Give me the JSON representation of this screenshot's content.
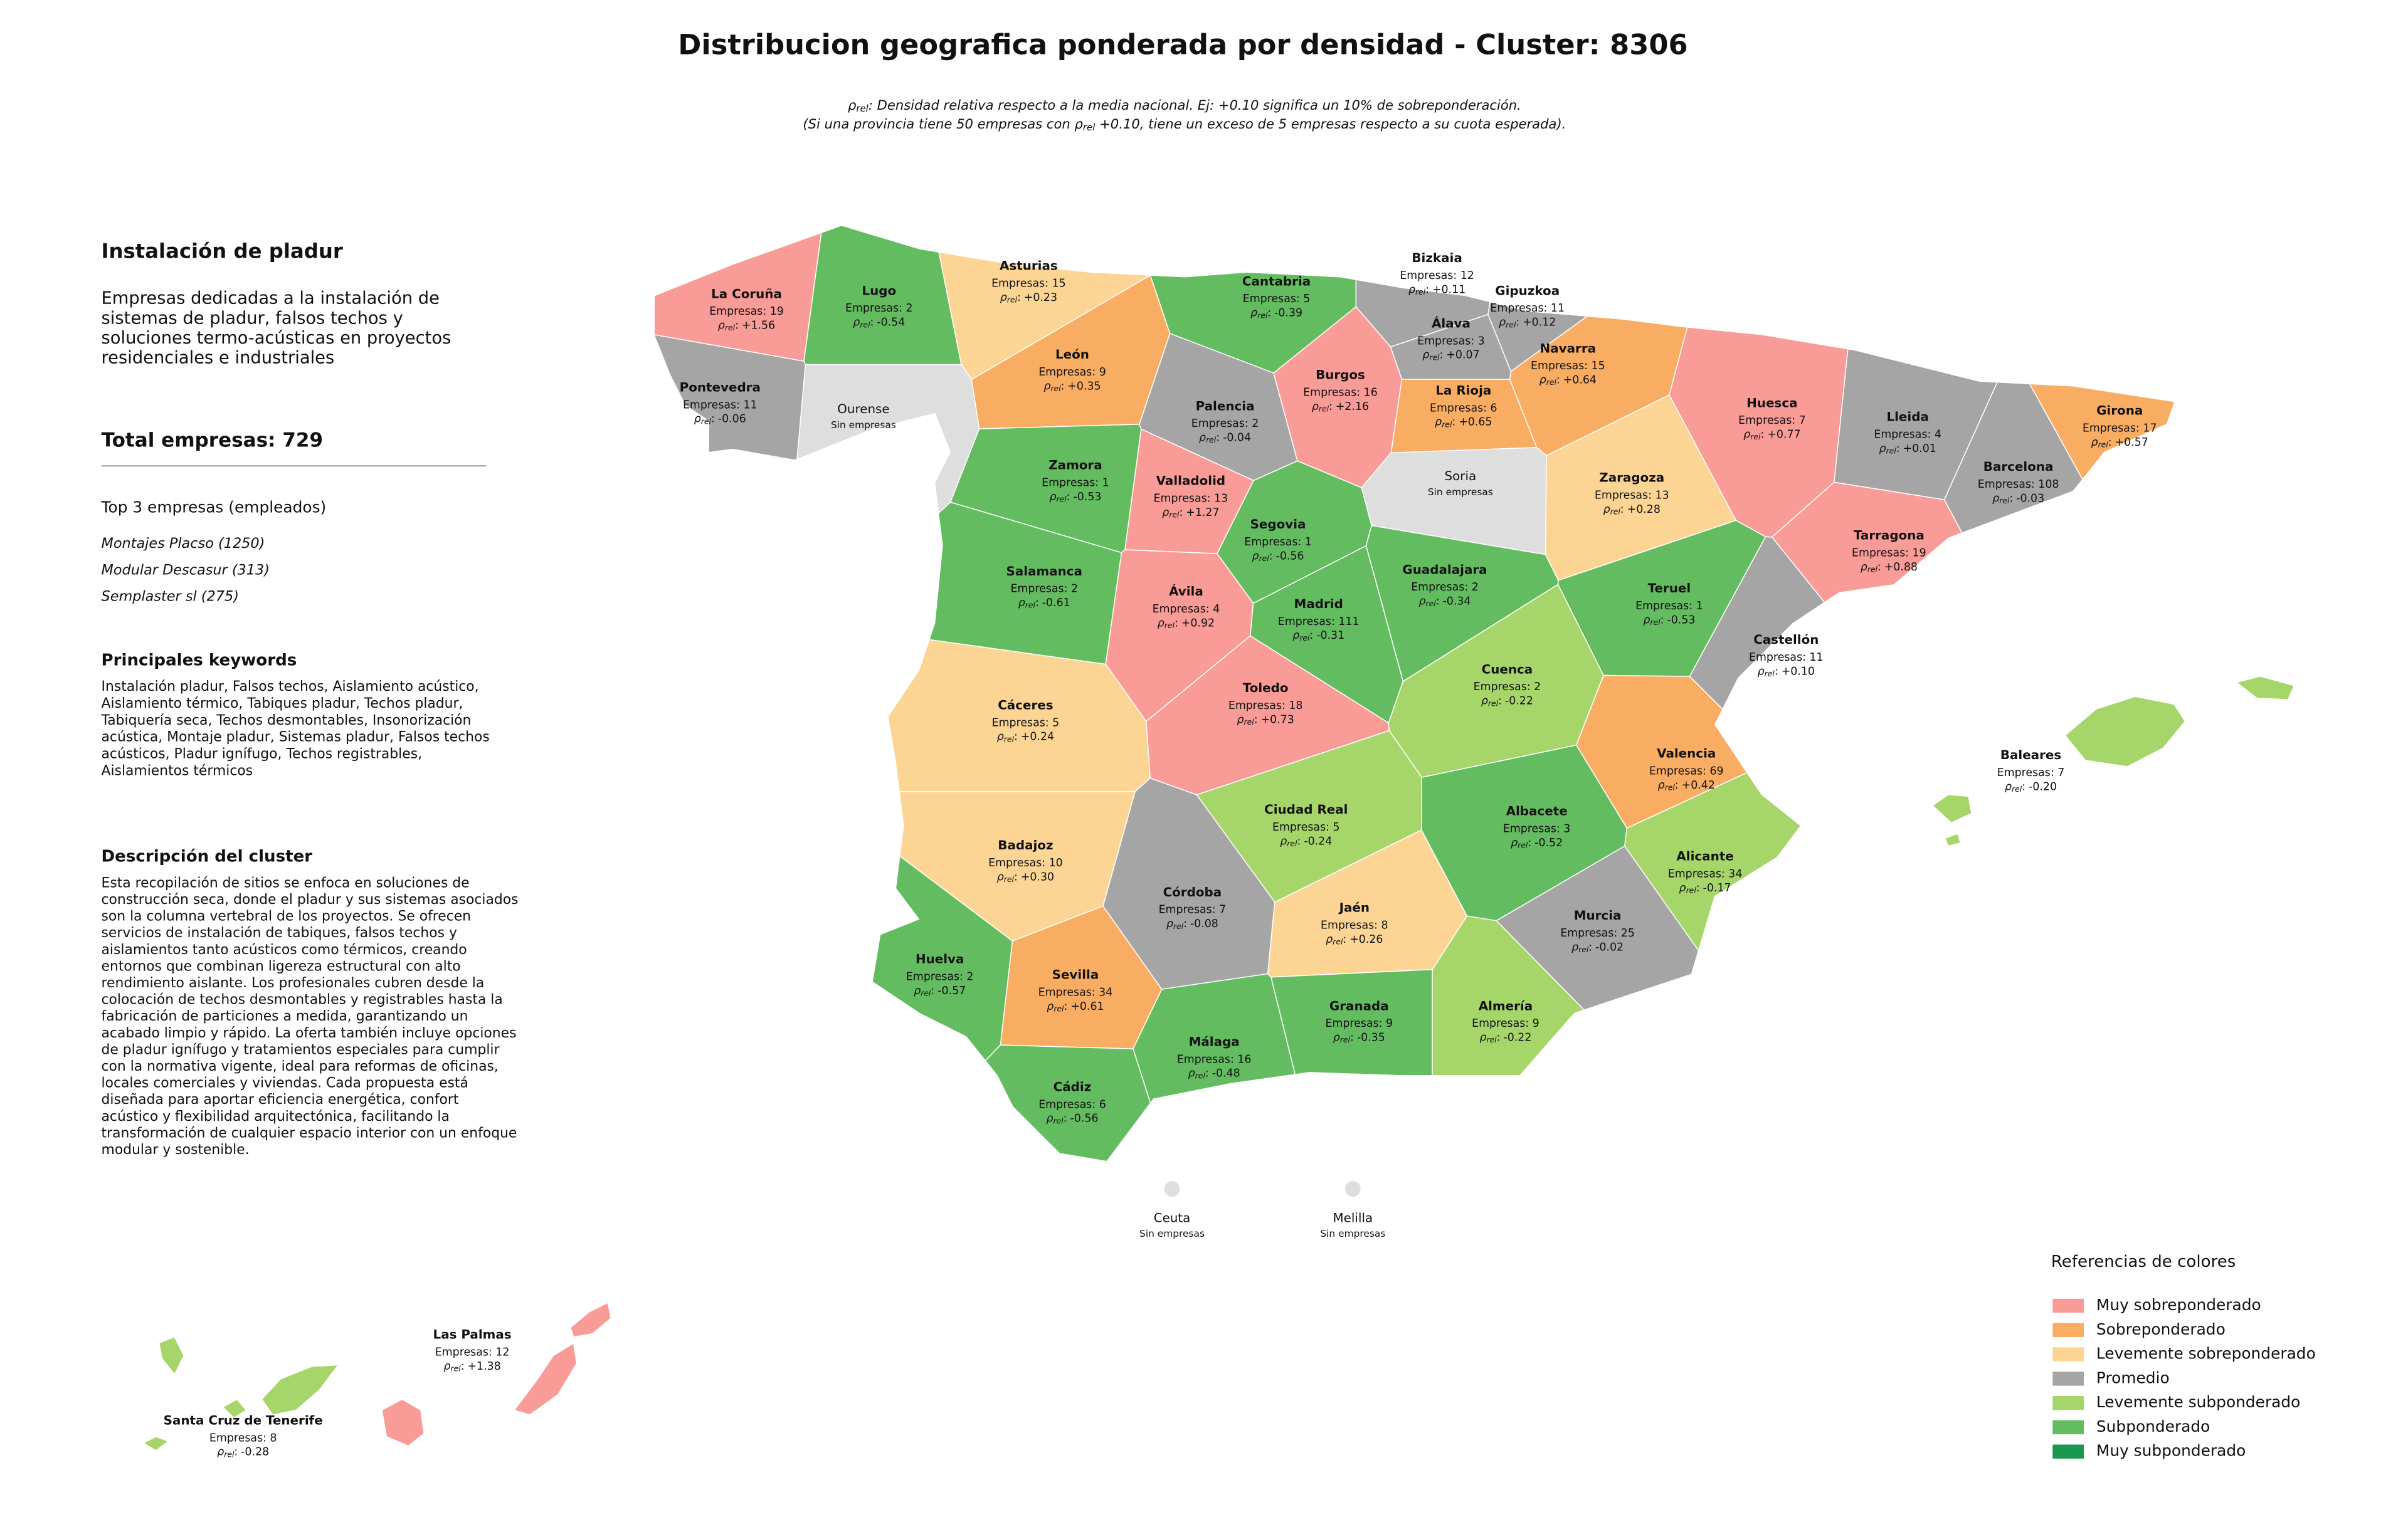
{
  "header": {
    "title": "Distribucion geografica ponderada por densidad - Cluster: 8306",
    "subtitle": [
      [
        {
          "t": "ρ"
        },
        {
          "t": "rel",
          "sub": true
        },
        {
          "t": ": Densidad relativa respecto a la media nacional. Ej: +0.10 significa un 10% de sobreponderación."
        }
      ],
      [
        {
          "t": "(Si una provincia tiene 50 empresas con ρ"
        },
        {
          "t": "rel",
          "sub": true
        },
        {
          "t": " +0.10, tiene un exceso de 5 empresas respecto a su cuota esperada)."
        }
      ]
    ]
  },
  "panel": {
    "title": "Instalación de pladur",
    "intro": [
      "Empresas dedicadas a la instalación de",
      "sistemas de pladur, falsos techos y",
      "soluciones termo-acústicas en proyectos",
      "residenciales e industriales"
    ],
    "total": "Total empresas: 729",
    "top_heading": "Top 3 empresas (empleados)",
    "top": [
      "Montajes Placso (1250)",
      "Modular Descasur (313)",
      "Semplaster sl (275)"
    ],
    "keywords_heading": "Principales keywords",
    "keywords": [
      "Instalación pladur, Falsos techos, Aislamiento acústico,",
      "Aislamiento térmico, Tabiques pladur, Techos pladur,",
      "Tabiquería seca, Techos desmontables, Insonorización",
      "acústica, Montaje pladur, Sistemas pladur, Falsos techos",
      "acústicos, Pladur ignífugo, Techos registrables,",
      "Aislamientos térmicos"
    ],
    "description_heading": "Descripción del cluster",
    "description": [
      "Esta recopilación de sitios se enfoca en soluciones de",
      "construcción seca, donde el pladur y sus sistemas asociados",
      "son la columna vertebral de los proyectos. Se ofrecen",
      "servicios de instalación de tabiques, falsos techos y",
      "aislamientos tanto acústicos como térmicos, creando",
      "entornos que combinan ligereza estructural con alto",
      "rendimiento aislante. Los profesionales cubren desde la",
      "colocación de techos desmontables y registrables hasta la",
      "fabricación de particiones a medida, garantizando un",
      "acabado limpio y rápido. La oferta también incluye opciones",
      "de pladur ignífugo y tratamientos especiales para cumplir",
      "con la normativa vigente, ideal para reformas de oficinas,",
      "locales comerciales y viviendas. Cada propuesta está",
      "diseñada para aportar eficiencia energética, confort",
      "acústico y flexibilidad arquitectónica, facilitando la",
      "transformación de cualquier espacio interior con un enfoque",
      "modular y sostenible."
    ]
  },
  "map": {
    "rho_symbol": "ρ",
    "rho_sub": "rel",
    "rho_sep": ":",
    "empty_color": "#dedede",
    "provinces": [
      {
        "name": "La Coruña",
        "empresas": "Empresas: 19",
        "rho": "+1.56",
        "color": "#f99b96"
      },
      {
        "name": "Lugo",
        "empresas": "Empresas: 2",
        "rho": "-0.54",
        "color": "#64bc61"
      },
      {
        "name": "Asturias",
        "empresas": "Empresas: 15",
        "rho": "+0.23",
        "color": "#fcd595"
      },
      {
        "name": "Cantabria",
        "empresas": "Empresas: 5",
        "rho": "-0.39",
        "color": "#64bc61"
      },
      {
        "name": "Bizkaia",
        "empresas": "Empresas: 12",
        "rho": "+0.11",
        "color": "#a5a5a5"
      },
      {
        "name": "Gipuzkoa",
        "empresas": "Empresas: 11",
        "rho": "+0.12",
        "color": "#a5a5a5"
      },
      {
        "name": "Álava",
        "empresas": "Empresas: 3",
        "rho": "+0.07",
        "color": "#a5a5a5"
      },
      {
        "name": "Navarra",
        "empresas": "Empresas: 15",
        "rho": "+0.64",
        "color": "#f9ad62"
      },
      {
        "name": "La Rioja",
        "empresas": "Empresas: 6",
        "rho": "+0.65",
        "color": "#f9ad62"
      },
      {
        "name": "Burgos",
        "empresas": "Empresas: 16",
        "rho": "+2.16",
        "color": "#f99b96"
      },
      {
        "name": "Palencia",
        "empresas": "Empresas: 2",
        "rho": "-0.04",
        "color": "#a5a5a5"
      },
      {
        "name": "León",
        "empresas": "Empresas: 9",
        "rho": "+0.35",
        "color": "#f9ad62"
      },
      {
        "name": "Pontevedra",
        "empresas": "Empresas: 11",
        "rho": "-0.06",
        "color": "#a5a5a5"
      },
      {
        "name": "Ourense",
        "status": "Sin empresas"
      },
      {
        "name": "Zamora",
        "empresas": "Empresas: 1",
        "rho": "-0.53",
        "color": "#64bc61"
      },
      {
        "name": "Valladolid",
        "empresas": "Empresas: 13",
        "rho": "+1.27",
        "color": "#f99b96"
      },
      {
        "name": "Soria",
        "status": "Sin empresas"
      },
      {
        "name": "Huesca",
        "empresas": "Empresas: 7",
        "rho": "+0.77",
        "color": "#f99b96"
      },
      {
        "name": "Lleida",
        "empresas": "Empresas: 4",
        "rho": "+0.01",
        "color": "#a5a5a5"
      },
      {
        "name": "Girona",
        "empresas": "Empresas: 17",
        "rho": "+0.57",
        "color": "#f9ad62"
      },
      {
        "name": "Barcelona",
        "empresas": "Empresas: 108",
        "rho": "-0.03",
        "color": "#a5a5a5"
      },
      {
        "name": "Zaragoza",
        "empresas": "Empresas: 13",
        "rho": "+0.28",
        "color": "#fcd595"
      },
      {
        "name": "Tarragona",
        "empresas": "Empresas: 19",
        "rho": "+0.88",
        "color": "#f99b96"
      },
      {
        "name": "Segovia",
        "empresas": "Empresas: 1",
        "rho": "-0.56",
        "color": "#64bc61"
      },
      {
        "name": "Salamanca",
        "empresas": "Empresas: 2",
        "rho": "-0.61",
        "color": "#64bc61"
      },
      {
        "name": "Guadalajara",
        "empresas": "Empresas: 2",
        "rho": "-0.34",
        "color": "#64bc61"
      },
      {
        "name": "Ávila",
        "empresas": "Empresas: 4",
        "rho": "+0.92",
        "color": "#f99b96"
      },
      {
        "name": "Madrid",
        "empresas": "Empresas: 111",
        "rho": "-0.31",
        "color": "#64bc61"
      },
      {
        "name": "Teruel",
        "empresas": "Empresas: 1",
        "rho": "-0.53",
        "color": "#64bc61"
      },
      {
        "name": "Castellón",
        "empresas": "Empresas: 11",
        "rho": "+0.10",
        "color": "#a5a5a5"
      },
      {
        "name": "Cuenca",
        "empresas": "Empresas: 2",
        "rho": "-0.22",
        "color": "#a6d66a"
      },
      {
        "name": "Toledo",
        "empresas": "Empresas: 18",
        "rho": "+0.73",
        "color": "#f99b96"
      },
      {
        "name": "Cáceres",
        "empresas": "Empresas: 5",
        "rho": "+0.24",
        "color": "#fcd595"
      },
      {
        "name": "Valencia",
        "empresas": "Empresas: 69",
        "rho": "+0.42",
        "color": "#f9ad62"
      },
      {
        "name": "Ciudad Real",
        "empresas": "Empresas: 5",
        "rho": "-0.24",
        "color": "#a6d66a"
      },
      {
        "name": "Albacete",
        "empresas": "Empresas: 3",
        "rho": "-0.52",
        "color": "#64bc61"
      },
      {
        "name": "Badajoz",
        "empresas": "Empresas: 10",
        "rho": "+0.30",
        "color": "#fcd595"
      },
      {
        "name": "Alicante",
        "empresas": "Empresas: 34",
        "rho": "-0.17",
        "color": "#a6d66a"
      },
      {
        "name": "Córdoba",
        "empresas": "Empresas: 7",
        "rho": "-0.08",
        "color": "#a5a5a5"
      },
      {
        "name": "Jaén",
        "empresas": "Empresas: 8",
        "rho": "+0.26",
        "color": "#fcd595"
      },
      {
        "name": "Murcia",
        "empresas": "Empresas: 25",
        "rho": "-0.02",
        "color": "#a5a5a5"
      },
      {
        "name": "Huelva",
        "empresas": "Empresas: 2",
        "rho": "-0.57",
        "color": "#64bc61"
      },
      {
        "name": "Sevilla",
        "empresas": "Empresas: 34",
        "rho": "+0.61",
        "color": "#f9ad62"
      },
      {
        "name": "Granada",
        "empresas": "Empresas: 9",
        "rho": "-0.35",
        "color": "#64bc61"
      },
      {
        "name": "Almería",
        "empresas": "Empresas: 9",
        "rho": "-0.22",
        "color": "#a6d66a"
      },
      {
        "name": "Málaga",
        "empresas": "Empresas: 16",
        "rho": "-0.48",
        "color": "#64bc61"
      },
      {
        "name": "Cádiz",
        "empresas": "Empresas: 6",
        "rho": "-0.56",
        "color": "#64bc61"
      },
      {
        "name": "Baleares",
        "empresas": "Empresas: 7",
        "rho": "-0.20",
        "color": "#a6d66a"
      },
      {
        "name": "Las Palmas",
        "empresas": "Empresas: 12",
        "rho": "+1.38",
        "color": "#f99b96"
      },
      {
        "name": "Santa Cruz de Tenerife",
        "empresas": "Empresas: 8",
        "rho": "-0.28",
        "color": "#a6d66a"
      },
      {
        "name": "Ceuta",
        "status": "Sin empresas"
      },
      {
        "name": "Melilla",
        "status": "Sin empresas"
      }
    ]
  },
  "legend": {
    "title": "Referencias de colores",
    "items": [
      {
        "name": "Muy sobreponderado",
        "color": "#f99b96"
      },
      {
        "name": "Sobreponderado",
        "color": "#f9ad62"
      },
      {
        "name": "Levemente sobreponderado",
        "color": "#fcd595"
      },
      {
        "name": "Promedio",
        "color": "#a5a5a5"
      },
      {
        "name": "Levemente subponderado",
        "color": "#a6d66a"
      },
      {
        "name": "Subponderado",
        "color": "#64bc61"
      },
      {
        "name": "Muy subponderado",
        "color": "#1a9850"
      }
    ]
  }
}
